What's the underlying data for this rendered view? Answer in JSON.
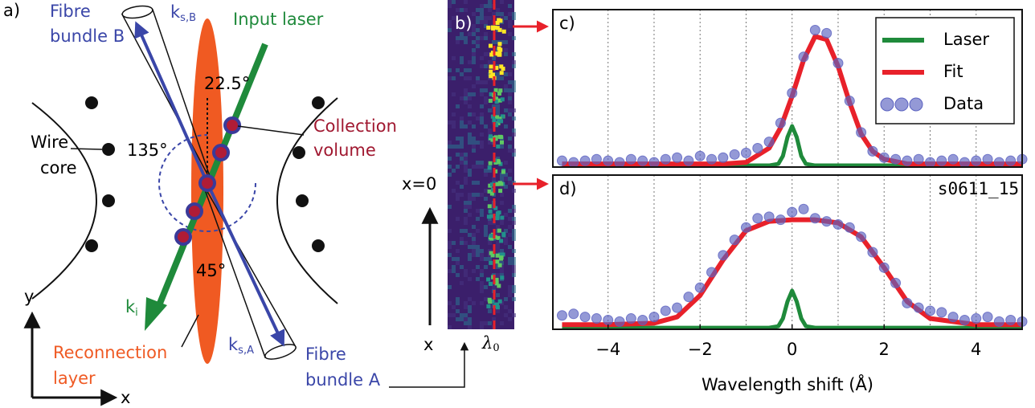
{
  "panel_a": {
    "label": "a)",
    "fibre_b": [
      "Fibre",
      "bundle B"
    ],
    "k_sB": {
      "base": "k",
      "sub": "s,B"
    },
    "input_laser": "Input laser",
    "angle_top": "22.5°",
    "collection_volume": [
      "Collection",
      "volume"
    ],
    "wire_core": [
      "Wire",
      "core"
    ],
    "angle_left": "135°",
    "angle_bottom": "45°",
    "k_i": {
      "base": "k",
      "sub": "i"
    },
    "k_sA": {
      "base": "k",
      "sub": "s,A"
    },
    "reconnection_layer": [
      "Reconnection",
      "layer"
    ],
    "fibre_a": [
      "Fibre",
      "bundle A"
    ],
    "axis_y": "y",
    "axis_x": "x"
  },
  "panel_b": {
    "label": "b)",
    "x_zero": "x=0",
    "axis_x": "x",
    "lambda": {
      "base": "λ",
      "sub": "0"
    }
  },
  "chart_data": [
    {
      "type": "line",
      "label": "c)",
      "xlim": [
        -5.2,
        5.0
      ],
      "ylim": [
        0,
        1
      ],
      "x_grid": [
        -4,
        -3,
        -2,
        -1,
        0,
        1,
        2,
        3,
        4
      ],
      "legend": "upper right",
      "series": [
        {
          "name": "Laser",
          "color": "#1f8a3b",
          "mode": "line",
          "x": [
            -5,
            -1,
            -0.5,
            -0.3,
            -0.2,
            -0.1,
            0,
            0.1,
            0.2,
            0.3,
            0.5,
            1,
            5
          ],
          "values": [
            0.01,
            0.01,
            0.01,
            0.02,
            0.07,
            0.19,
            0.26,
            0.19,
            0.07,
            0.02,
            0.01,
            0.01,
            0.01
          ]
        },
        {
          "name": "Fit",
          "color": "#e8212a",
          "mode": "line",
          "x": [
            -5,
            -2,
            -1.5,
            -1,
            -0.5,
            -0.25,
            0,
            0.25,
            0.5,
            0.75,
            1,
            1.25,
            1.5,
            1.75,
            2,
            2.5,
            5
          ],
          "values": [
            0.02,
            0.02,
            0.02,
            0.03,
            0.12,
            0.25,
            0.45,
            0.68,
            0.83,
            0.81,
            0.64,
            0.41,
            0.21,
            0.1,
            0.05,
            0.02,
            0.02
          ]
        },
        {
          "name": "Data",
          "color": "#5b62c0",
          "mode": "markers",
          "x": [
            -5,
            -4.75,
            -4.5,
            -4.25,
            -4,
            -3.75,
            -3.5,
            -3.25,
            -3,
            -2.75,
            -2.5,
            -2.25,
            -2,
            -1.75,
            -1.5,
            -1.25,
            -1,
            -0.75,
            -0.5,
            -0.25,
            0,
            0.25,
            0.5,
            0.75,
            1,
            1.25,
            1.5,
            1.75,
            2,
            2.25,
            2.5,
            2.75,
            3,
            3.25,
            3.5,
            3.75,
            4,
            4.25,
            4.5,
            4.75,
            5
          ],
          "values": [
            0.04,
            0.03,
            0.04,
            0.05,
            0.04,
            0.03,
            0.05,
            0.04,
            0.03,
            0.05,
            0.06,
            0.04,
            0.07,
            0.05,
            0.06,
            0.08,
            0.09,
            0.12,
            0.16,
            0.28,
            0.47,
            0.7,
            0.87,
            0.85,
            0.66,
            0.42,
            0.22,
            0.1,
            0.06,
            0.05,
            0.04,
            0.05,
            0.03,
            0.04,
            0.05,
            0.03,
            0.04,
            0.05,
            0.03,
            0.04,
            0.05
          ]
        }
      ]
    },
    {
      "type": "line",
      "label": "d)",
      "annotation": "s0611_15",
      "x_label": "Wavelength shift (Å)",
      "xlim": [
        -5.2,
        5.0
      ],
      "ylim": [
        0,
        1
      ],
      "xticks": [
        {
          "value": -4,
          "label": "−4"
        },
        {
          "value": -2,
          "label": "−2"
        },
        0,
        2,
        4
      ],
      "x_grid": [
        -4,
        -3,
        -2,
        -1,
        0,
        1,
        2,
        3,
        4
      ],
      "series": [
        {
          "color": "#1f8a3b",
          "mode": "line",
          "x": [
            -5,
            -1,
            -0.5,
            -0.3,
            -0.2,
            -0.1,
            0,
            0.1,
            0.2,
            0.3,
            0.5,
            1,
            5
          ],
          "values": [
            0.01,
            0.01,
            0.01,
            0.02,
            0.07,
            0.18,
            0.25,
            0.18,
            0.07,
            0.02,
            0.01,
            0.01,
            0.01
          ]
        },
        {
          "color": "#e8212a",
          "mode": "line",
          "x": [
            -5,
            -4,
            -3,
            -2.5,
            -2,
            -1.5,
            -1,
            -0.5,
            0,
            0.5,
            1,
            1.5,
            2,
            2.5,
            3,
            4,
            5
          ],
          "values": [
            0.03,
            0.03,
            0.04,
            0.08,
            0.22,
            0.45,
            0.64,
            0.7,
            0.71,
            0.71,
            0.69,
            0.6,
            0.4,
            0.18,
            0.07,
            0.03,
            0.03
          ]
        },
        {
          "color": "#5b62c0",
          "mode": "markers",
          "x": [
            -5,
            -4.75,
            -4.5,
            -4.25,
            -4,
            -3.75,
            -3.5,
            -3.25,
            -3,
            -2.75,
            -2.5,
            -2.25,
            -2,
            -1.75,
            -1.5,
            -1.25,
            -1,
            -0.75,
            -0.5,
            -0.25,
            0,
            0.25,
            0.5,
            0.75,
            1,
            1.25,
            1.5,
            1.75,
            2,
            2.25,
            2.5,
            2.75,
            3,
            3.25,
            3.5,
            3.75,
            4,
            4.25,
            4.5,
            4.75,
            5
          ],
          "values": [
            0.09,
            0.1,
            0.08,
            0.07,
            0.06,
            0.05,
            0.07,
            0.06,
            0.08,
            0.12,
            0.14,
            0.21,
            0.27,
            0.37,
            0.48,
            0.58,
            0.66,
            0.72,
            0.73,
            0.71,
            0.76,
            0.78,
            0.72,
            0.7,
            0.68,
            0.66,
            0.6,
            0.5,
            0.4,
            0.3,
            0.17,
            0.14,
            0.12,
            0.11,
            0.08,
            0.06,
            0.07,
            0.08,
            0.05,
            0.06,
            0.05
          ]
        }
      ]
    }
  ]
}
